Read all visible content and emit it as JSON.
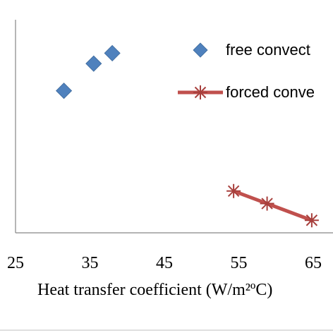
{
  "chart_data": {
    "type": "scatter",
    "title": "",
    "xlabel": "Heat transfer coefficient (W/m²ºC)",
    "ylabel": "",
    "xlim": [
      25,
      70
    ],
    "x_ticks": [
      "25",
      "35",
      "45",
      "55",
      "65"
    ],
    "grid": false,
    "legend_position": "top-right",
    "series": [
      {
        "name": "free convect",
        "marker": "diamond",
        "line": false,
        "color": "#4f81bd",
        "x": [
          31.5,
          35.5,
          38.0
        ],
        "y": [
          0.68,
          0.81,
          0.86
        ]
      },
      {
        "name": "forced conve",
        "marker": "star",
        "line": true,
        "color": "#c0504d",
        "x": [
          54.3,
          58.8,
          64.8
        ],
        "y": [
          0.2,
          0.14,
          0.06
        ]
      }
    ],
    "ylim": [
      0,
      1.02
    ]
  }
}
